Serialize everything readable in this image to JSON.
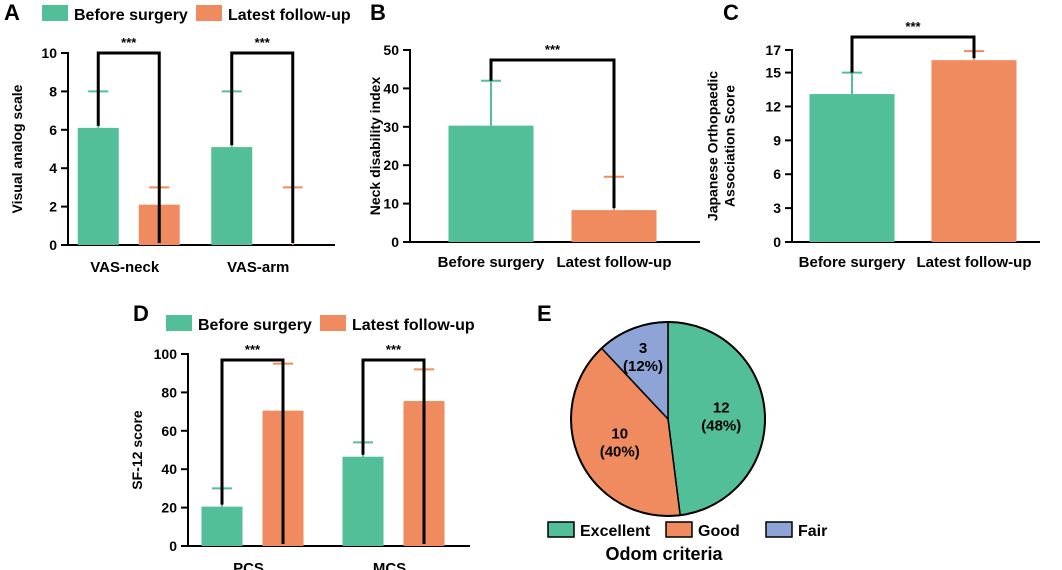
{
  "colors": {
    "before": "#52bf98",
    "latest": "#ef8b5e",
    "fair": "#8fa4d6",
    "axis": "#000000"
  },
  "legend": {
    "before": "Before surgery",
    "latest": "Latest follow-up"
  },
  "chart_data": [
    {
      "id": "A",
      "type": "bar",
      "panel": "A",
      "ylabel": "Visual analog scale",
      "ylim": [
        0,
        10
      ],
      "yticks": [
        0,
        2,
        4,
        6,
        8,
        10
      ],
      "categories": [
        "VAS-neck",
        "VAS-arm"
      ],
      "series": [
        {
          "name": "Before surgery",
          "values": [
            6.1,
            5.1
          ],
          "errors": [
            8.0,
            8.0
          ]
        },
        {
          "name": "Latest follow-up",
          "values": [
            2.1,
            0.0
          ],
          "errors": [
            3.0,
            3.0
          ]
        }
      ],
      "significance": [
        "***",
        "***"
      ]
    },
    {
      "id": "B",
      "type": "bar",
      "panel": "B",
      "ylabel": "Neck disability index",
      "ylim": [
        0,
        50
      ],
      "yticks": [
        0,
        10,
        20,
        30,
        40,
        50
      ],
      "categories": [
        "Before surgery",
        "Latest follow-up"
      ],
      "values": [
        30.3,
        8.3
      ],
      "errors": [
        42.0,
        17.0
      ],
      "significance": "***"
    },
    {
      "id": "C",
      "type": "bar",
      "panel": "C",
      "ylabel": [
        "Japanese Orthopaedic",
        "Association Score"
      ],
      "ylim": [
        0,
        17
      ],
      "yticks": [
        0,
        3,
        6,
        9,
        12,
        15,
        17
      ],
      "categories": [
        "Before surgery",
        "Latest follow-up"
      ],
      "values": [
        13.1,
        16.1
      ],
      "errors": [
        15.0,
        16.9
      ],
      "significance": "***"
    },
    {
      "id": "D",
      "type": "bar",
      "panel": "D",
      "ylabel": "SF-12 score",
      "ylim": [
        0,
        100
      ],
      "yticks": [
        0,
        20,
        40,
        60,
        80,
        100
      ],
      "categories": [
        "PCS",
        "MCS"
      ],
      "series": [
        {
          "name": "Before surgery",
          "values": [
            20.5,
            46.5
          ],
          "errors": [
            30.0,
            54.0
          ]
        },
        {
          "name": "Latest follow-up",
          "values": [
            70.5,
            75.5
          ],
          "errors": [
            95.0,
            92.0
          ]
        }
      ],
      "significance": [
        "***",
        "***"
      ]
    },
    {
      "id": "E",
      "type": "pie",
      "panel": "E",
      "title": "Odom criteria",
      "slices": [
        {
          "name": "Excellent",
          "value": 12,
          "label": "12",
          "pct": "(48%)",
          "color": "#52bf98"
        },
        {
          "name": "Good",
          "value": 10,
          "label": "10",
          "pct": "(40%)",
          "color": "#ef8b5e"
        },
        {
          "name": "Fair",
          "value": 3,
          "label": "3",
          "pct": "(12%)",
          "color": "#8fa4d6"
        }
      ]
    }
  ]
}
